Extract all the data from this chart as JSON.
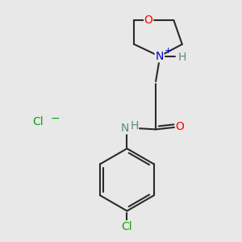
{
  "bg_color": "#e8e8e8",
  "bond_color": "#2a2a2a",
  "bond_width": 1.5,
  "atom_colors": {
    "O": "#ff0000",
    "N_charged": "#0000cc",
    "N_amide": "#5a8a8a",
    "Cl_green": "#00aa00",
    "Cl_ion": "#00aa00",
    "H": "#5a8a8a"
  },
  "font_size_atom": 10,
  "font_size_small": 8,
  "font_size_charge": 7,
  "canvas_xlim": [
    0.0,
    1.0
  ],
  "canvas_ylim": [
    0.0,
    1.0
  ]
}
